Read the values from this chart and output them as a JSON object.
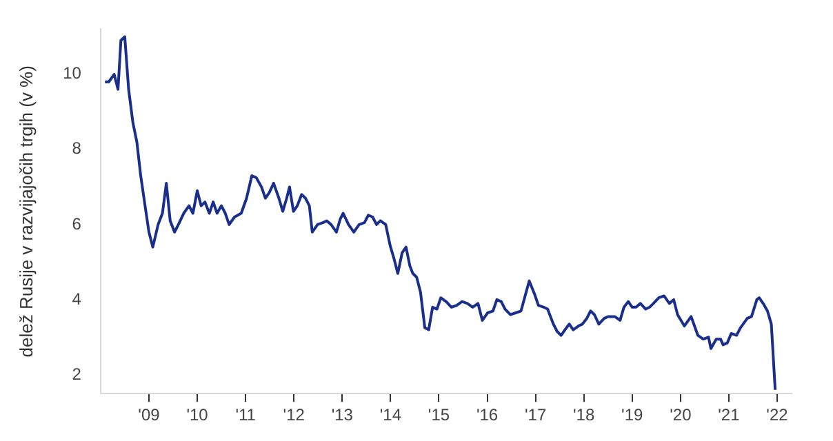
{
  "chart_data": {
    "type": "line",
    "ylabel": "delež Rusije v razvijajočih trgih (v %)",
    "xlim": [
      2008,
      2022.3
    ],
    "ylim": [
      1.5,
      11.2
    ],
    "yticks": [
      2,
      4,
      6,
      8,
      10
    ],
    "xticks": [
      {
        "value": 2009,
        "label": "'09"
      },
      {
        "value": 2010,
        "label": "'10"
      },
      {
        "value": 2011,
        "label": "'11"
      },
      {
        "value": 2012,
        "label": "'12"
      },
      {
        "value": 2013,
        "label": "'13"
      },
      {
        "value": 2014,
        "label": "'14"
      },
      {
        "value": 2015,
        "label": "'15"
      },
      {
        "value": 2016,
        "label": "'16"
      },
      {
        "value": 2017,
        "label": "'17"
      },
      {
        "value": 2018,
        "label": "'18"
      },
      {
        "value": 2019,
        "label": "'19"
      },
      {
        "value": 2020,
        "label": "'20"
      },
      {
        "value": 2021,
        "label": "'21"
      },
      {
        "value": 2022,
        "label": "'22"
      }
    ],
    "grid": false,
    "legend": false,
    "marker": "none",
    "line_style": "solid",
    "x": [
      2008.09,
      2008.17,
      2008.28,
      2008.36,
      2008.42,
      2008.5,
      2008.58,
      2008.67,
      2008.75,
      2008.83,
      2008.92,
      2009.0,
      2009.08,
      2009.19,
      2009.28,
      2009.36,
      2009.44,
      2009.53,
      2009.61,
      2009.72,
      2009.83,
      2009.91,
      2010.0,
      2010.08,
      2010.16,
      2010.25,
      2010.33,
      2010.41,
      2010.5,
      2010.58,
      2010.66,
      2010.77,
      2010.91,
      2011.02,
      2011.13,
      2011.22,
      2011.33,
      2011.41,
      2011.49,
      2011.58,
      2011.69,
      2011.77,
      2011.85,
      2011.91,
      2011.99,
      2012.07,
      2012.16,
      2012.24,
      2012.32,
      2012.38,
      2012.49,
      2012.6,
      2012.68,
      2012.77,
      2012.88,
      2012.96,
      2013.02,
      2013.13,
      2013.24,
      2013.35,
      2013.46,
      2013.54,
      2013.63,
      2013.71,
      2013.79,
      2013.9,
      2013.99,
      2014.07,
      2014.15,
      2014.24,
      2014.32,
      2014.4,
      2014.46,
      2014.54,
      2014.62,
      2014.71,
      2014.79,
      2014.87,
      2014.96,
      2015.04,
      2015.15,
      2015.26,
      2015.37,
      2015.48,
      2015.59,
      2015.7,
      2015.81,
      2015.9,
      2016.01,
      2016.12,
      2016.2,
      2016.29,
      2016.37,
      2016.48,
      2016.59,
      2016.7,
      2016.87,
      2016.98,
      2017.06,
      2017.17,
      2017.25,
      2017.37,
      2017.45,
      2017.53,
      2017.61,
      2017.7,
      2017.78,
      2017.89,
      2017.97,
      2018.06,
      2018.14,
      2018.22,
      2018.31,
      2018.42,
      2018.5,
      2018.64,
      2018.75,
      2018.83,
      2018.92,
      2019.0,
      2019.08,
      2019.17,
      2019.28,
      2019.36,
      2019.44,
      2019.55,
      2019.66,
      2019.77,
      2019.86,
      2019.94,
      2020.08,
      2020.22,
      2020.36,
      2020.47,
      2020.58,
      2020.63,
      2020.74,
      2020.83,
      2020.88,
      2020.97,
      2021.05,
      2021.16,
      2021.24,
      2021.38,
      2021.47,
      2021.58,
      2021.63,
      2021.71,
      2021.8,
      2021.88,
      2021.96
    ],
    "series": [
      {
        "color": "#1a2e8c",
        "values": [
          9.8,
          9.8,
          10.0,
          9.6,
          10.9,
          11.0,
          9.6,
          8.7,
          8.2,
          7.3,
          6.5,
          5.8,
          5.4,
          6.0,
          6.3,
          7.1,
          6.1,
          5.8,
          6.0,
          6.3,
          6.5,
          6.3,
          6.9,
          6.5,
          6.6,
          6.3,
          6.6,
          6.3,
          6.5,
          6.3,
          6.0,
          6.2,
          6.3,
          6.7,
          7.3,
          7.25,
          7.0,
          6.7,
          6.85,
          7.1,
          6.7,
          6.35,
          6.7,
          7.0,
          6.35,
          6.5,
          6.8,
          6.7,
          6.5,
          5.8,
          6.0,
          6.05,
          6.1,
          6.0,
          5.8,
          6.15,
          6.3,
          6.0,
          5.8,
          6.0,
          6.05,
          6.25,
          6.2,
          6.0,
          6.1,
          6.0,
          5.45,
          5.1,
          4.7,
          5.25,
          5.4,
          4.9,
          4.7,
          4.6,
          4.2,
          3.25,
          3.2,
          3.8,
          3.75,
          4.05,
          3.95,
          3.8,
          3.85,
          3.95,
          3.9,
          3.8,
          3.9,
          3.45,
          3.65,
          3.7,
          4.0,
          3.95,
          3.75,
          3.6,
          3.65,
          3.7,
          4.5,
          4.15,
          3.85,
          3.8,
          3.75,
          3.35,
          3.15,
          3.05,
          3.2,
          3.35,
          3.2,
          3.3,
          3.35,
          3.5,
          3.7,
          3.6,
          3.35,
          3.5,
          3.55,
          3.55,
          3.45,
          3.8,
          3.95,
          3.8,
          3.8,
          3.9,
          3.75,
          3.8,
          3.9,
          4.05,
          4.1,
          3.9,
          4.0,
          3.6,
          3.3,
          3.55,
          3.05,
          2.95,
          3.0,
          2.7,
          2.95,
          2.95,
          2.8,
          2.85,
          3.1,
          3.05,
          3.25,
          3.5,
          3.55,
          4.0,
          4.05,
          3.9,
          3.7,
          3.35,
          1.6
        ]
      }
    ]
  }
}
